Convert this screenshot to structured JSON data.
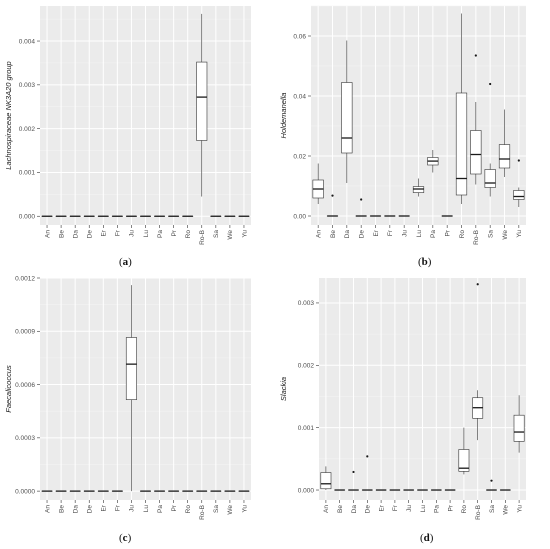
{
  "panel_labels": [
    {
      "open": "(",
      "letter": "a",
      "close": ")"
    },
    {
      "open": "(",
      "letter": "b",
      "close": ")"
    },
    {
      "open": "(",
      "letter": "c",
      "close": ")"
    },
    {
      "open": "(",
      "letter": "d",
      "close": ")"
    }
  ],
  "colors": {
    "panel_bg": "#ebebeb",
    "grid_major": "#ffffff",
    "box_fill": "#ffffff",
    "box_stroke": "#333333",
    "text": "#4d4d4d"
  },
  "chart_data": [
    {
      "type": "box",
      "ylabel": "Lachnospiraceae NK3A20 group",
      "categories": [
        "An",
        "Be",
        "Da",
        "De",
        "Er",
        "Fr",
        "Ju",
        "Lu",
        "Pa",
        "Pr",
        "Ro",
        "Ro-B",
        "Sa",
        "We",
        "Yu"
      ],
      "ylim": [
        -0.0002,
        0.0048
      ],
      "yticks": [
        0,
        0.001,
        0.002,
        0.003,
        0.004
      ],
      "ytick_labels": [
        "0.000",
        "0.001",
        "0.002",
        "0.003",
        "0.004"
      ],
      "grid": true,
      "boxes": [
        {
          "min": 0,
          "q1": 0,
          "median": 0,
          "q3": 0,
          "max": 0,
          "outliers": []
        },
        {
          "min": 0,
          "q1": 0,
          "median": 0,
          "q3": 0,
          "max": 0,
          "outliers": []
        },
        {
          "min": 0,
          "q1": 0,
          "median": 0,
          "q3": 0,
          "max": 0,
          "outliers": []
        },
        {
          "min": 0,
          "q1": 0,
          "median": 0,
          "q3": 0,
          "max": 0,
          "outliers": []
        },
        {
          "min": 0,
          "q1": 0,
          "median": 0,
          "q3": 0,
          "max": 0,
          "outliers": []
        },
        {
          "min": 0,
          "q1": 0,
          "median": 0,
          "q3": 0,
          "max": 0,
          "outliers": []
        },
        {
          "min": 0,
          "q1": 0,
          "median": 0,
          "q3": 0,
          "max": 0,
          "outliers": []
        },
        {
          "min": 0,
          "q1": 0,
          "median": 0,
          "q3": 0,
          "max": 0,
          "outliers": []
        },
        {
          "min": 0,
          "q1": 0,
          "median": 0,
          "q3": 0,
          "max": 0,
          "outliers": []
        },
        {
          "min": 0,
          "q1": 0,
          "median": 0,
          "q3": 0,
          "max": 0,
          "outliers": []
        },
        {
          "min": 0,
          "q1": 0,
          "median": 0,
          "q3": 0,
          "max": 0,
          "outliers": []
        },
        {
          "min": 0.00045,
          "q1": 0.00173,
          "median": 0.00272,
          "q3": 0.00352,
          "max": 0.00462,
          "outliers": []
        },
        {
          "min": 0,
          "q1": 0,
          "median": 0,
          "q3": 0,
          "max": 0,
          "outliers": []
        },
        {
          "min": 0,
          "q1": 0,
          "median": 0,
          "q3": 0,
          "max": 0,
          "outliers": []
        },
        {
          "min": 0,
          "q1": 0,
          "median": 0,
          "q3": 0,
          "max": 0,
          "outliers": []
        }
      ]
    },
    {
      "type": "box",
      "ylabel": "Holdemanella",
      "categories": [
        "An",
        "Be",
        "Da",
        "De",
        "Er",
        "Fr",
        "Ju",
        "Lu",
        "Pa",
        "Pr",
        "Ro",
        "Ro-B",
        "Sa",
        "We",
        "Yu"
      ],
      "ylim": [
        -0.003,
        0.07
      ],
      "yticks": [
        0,
        0.02,
        0.04,
        0.06
      ],
      "ytick_labels": [
        "0.00",
        "0.02",
        "0.04",
        "0.06"
      ],
      "grid": true,
      "boxes": [
        {
          "min": 0.004,
          "q1": 0.006,
          "median": 0.009,
          "q3": 0.012,
          "max": 0.0175,
          "outliers": []
        },
        {
          "min": 0,
          "q1": 0,
          "median": 0,
          "q3": 0,
          "max": 0,
          "outliers": [
            0.0068
          ]
        },
        {
          "min": 0.011,
          "q1": 0.021,
          "median": 0.026,
          "q3": 0.0445,
          "max": 0.0585,
          "outliers": []
        },
        {
          "min": 0,
          "q1": 0,
          "median": 0,
          "q3": 0,
          "max": 0,
          "outliers": [
            0.0055
          ]
        },
        {
          "min": 0,
          "q1": 0,
          "median": 0,
          "q3": 0,
          "max": 0,
          "outliers": []
        },
        {
          "min": 0,
          "q1": 0,
          "median": 0,
          "q3": 0,
          "max": 0,
          "outliers": []
        },
        {
          "min": 0,
          "q1": 0,
          "median": 0,
          "q3": 0,
          "max": 0,
          "outliers": []
        },
        {
          "min": 0.0065,
          "q1": 0.0078,
          "median": 0.009,
          "q3": 0.0098,
          "max": 0.0125,
          "outliers": []
        },
        {
          "min": 0.0145,
          "q1": 0.017,
          "median": 0.0183,
          "q3": 0.0195,
          "max": 0.022,
          "outliers": []
        },
        {
          "min": 0,
          "q1": 0,
          "median": 0,
          "q3": 0,
          "max": 0,
          "outliers": []
        },
        {
          "min": 0.004,
          "q1": 0.007,
          "median": 0.0125,
          "q3": 0.041,
          "max": 0.0675,
          "outliers": []
        },
        {
          "min": 0.0105,
          "q1": 0.014,
          "median": 0.0205,
          "q3": 0.0285,
          "max": 0.038,
          "outliers": [
            0.0535
          ]
        },
        {
          "min": 0.0065,
          "q1": 0.0095,
          "median": 0.011,
          "q3": 0.0155,
          "max": 0.0175,
          "outliers": [
            0.044
          ]
        },
        {
          "min": 0.013,
          "q1": 0.016,
          "median": 0.019,
          "q3": 0.0238,
          "max": 0.0355,
          "outliers": []
        },
        {
          "min": 0.003,
          "q1": 0.0055,
          "median": 0.0065,
          "q3": 0.0085,
          "max": 0.0095,
          "outliers": [
            0.0185
          ]
        }
      ]
    },
    {
      "type": "box",
      "ylabel": "Faecalicoccus",
      "categories": [
        "An",
        "Be",
        "Da",
        "De",
        "Er",
        "Fr",
        "Ju",
        "Lu",
        "Pa",
        "Pr",
        "Ro",
        "Ro-B",
        "Sa",
        "We",
        "Yu"
      ],
      "ylim": [
        -5e-05,
        0.0012
      ],
      "yticks": [
        0,
        0.0003,
        0.0006,
        0.0009,
        0.0012
      ],
      "ytick_labels": [
        "0.0000",
        "0.0003",
        "0.0006",
        "0.0009",
        "0.0012"
      ],
      "grid": true,
      "boxes": [
        {
          "min": 0,
          "q1": 0,
          "median": 0,
          "q3": 0,
          "max": 0,
          "outliers": []
        },
        {
          "min": 0,
          "q1": 0,
          "median": 0,
          "q3": 0,
          "max": 0,
          "outliers": []
        },
        {
          "min": 0,
          "q1": 0,
          "median": 0,
          "q3": 0,
          "max": 0,
          "outliers": []
        },
        {
          "min": 0,
          "q1": 0,
          "median": 0,
          "q3": 0,
          "max": 0,
          "outliers": []
        },
        {
          "min": 0,
          "q1": 0,
          "median": 0,
          "q3": 0,
          "max": 0,
          "outliers": []
        },
        {
          "min": 0,
          "q1": 0,
          "median": 0,
          "q3": 0,
          "max": 0,
          "outliers": []
        },
        {
          "min": 0,
          "q1": 0.000515,
          "median": 0.000715,
          "q3": 0.000865,
          "max": 0.00116,
          "outliers": []
        },
        {
          "min": 0,
          "q1": 0,
          "median": 0,
          "q3": 0,
          "max": 0,
          "outliers": []
        },
        {
          "min": 0,
          "q1": 0,
          "median": 0,
          "q3": 0,
          "max": 0,
          "outliers": []
        },
        {
          "min": 0,
          "q1": 0,
          "median": 0,
          "q3": 0,
          "max": 0,
          "outliers": []
        },
        {
          "min": 0,
          "q1": 0,
          "median": 0,
          "q3": 0,
          "max": 0,
          "outliers": []
        },
        {
          "min": 0,
          "q1": 0,
          "median": 0,
          "q3": 0,
          "max": 0,
          "outliers": []
        },
        {
          "min": 0,
          "q1": 0,
          "median": 0,
          "q3": 0,
          "max": 0,
          "outliers": []
        },
        {
          "min": 0,
          "q1": 0,
          "median": 0,
          "q3": 0,
          "max": 0,
          "outliers": []
        },
        {
          "min": 0,
          "q1": 0,
          "median": 0,
          "q3": 0,
          "max": 0,
          "outliers": []
        }
      ]
    },
    {
      "type": "box",
      "ylabel": "Slackia",
      "categories": [
        "An",
        "Be",
        "Da",
        "De",
        "Er",
        "Fr",
        "Ju",
        "Lu",
        "Pa",
        "Pr",
        "Ro",
        "Ro-B",
        "Sa",
        "We",
        "Yu"
      ],
      "ylim": [
        -0.00016,
        0.0034
      ],
      "yticks": [
        0,
        0.001,
        0.002,
        0.003
      ],
      "ytick_labels": [
        "0.000",
        "0.001",
        "0.002",
        "0.003"
      ],
      "grid": true,
      "boxes": [
        {
          "min": 0,
          "q1": 2e-05,
          "median": 0.0001,
          "q3": 0.00028,
          "max": 0.00038,
          "outliers": []
        },
        {
          "min": 0,
          "q1": 0,
          "median": 0,
          "q3": 0,
          "max": 0,
          "outliers": []
        },
        {
          "min": 0,
          "q1": 0,
          "median": 0,
          "q3": 0,
          "max": 0,
          "outliers": [
            0.00029
          ]
        },
        {
          "min": 0,
          "q1": 0,
          "median": 0,
          "q3": 0,
          "max": 0,
          "outliers": [
            0.00054
          ]
        },
        {
          "min": 0,
          "q1": 0,
          "median": 0,
          "q3": 0,
          "max": 0,
          "outliers": []
        },
        {
          "min": 0,
          "q1": 0,
          "median": 0,
          "q3": 0,
          "max": 0,
          "outliers": []
        },
        {
          "min": 0,
          "q1": 0,
          "median": 0,
          "q3": 0,
          "max": 0,
          "outliers": []
        },
        {
          "min": 0,
          "q1": 0,
          "median": 0,
          "q3": 0,
          "max": 0,
          "outliers": []
        },
        {
          "min": 0,
          "q1": 0,
          "median": 0,
          "q3": 0,
          "max": 0,
          "outliers": []
        },
        {
          "min": 0,
          "q1": 0,
          "median": 0,
          "q3": 0,
          "max": 0,
          "outliers": []
        },
        {
          "min": 0.00025,
          "q1": 0.0003,
          "median": 0.00035,
          "q3": 0.00065,
          "max": 0.001,
          "outliers": []
        },
        {
          "min": 0.0008,
          "q1": 0.00115,
          "median": 0.00132,
          "q3": 0.00148,
          "max": 0.0016,
          "outliers": [
            0.0033
          ]
        },
        {
          "min": 0,
          "q1": 0,
          "median": 0,
          "q3": 0,
          "max": 0,
          "outliers": [
            0.00015
          ]
        },
        {
          "min": 0,
          "q1": 0,
          "median": 0,
          "q3": 0,
          "max": 0,
          "outliers": []
        },
        {
          "min": 0.0006,
          "q1": 0.00078,
          "median": 0.00093,
          "q3": 0.0012,
          "max": 0.00152,
          "outliers": []
        }
      ]
    }
  ]
}
